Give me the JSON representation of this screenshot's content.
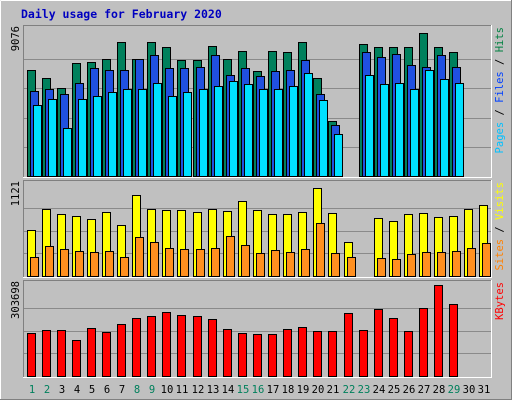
{
  "chart_data": {
    "type": "bar",
    "title": "Daily usage for February 2020",
    "days": [
      "1",
      "2",
      "3",
      "4",
      "5",
      "6",
      "7",
      "8",
      "9",
      "10",
      "11",
      "12",
      "13",
      "14",
      "15",
      "16",
      "17",
      "18",
      "19",
      "20",
      "21",
      "22",
      "23",
      "24",
      "25",
      "26",
      "27",
      "28",
      "29",
      "30",
      "31"
    ],
    "weekend_days": [
      1,
      2,
      8,
      9,
      15,
      16,
      22,
      23,
      29
    ],
    "panels": [
      {
        "id": "hits_files_pages",
        "ymax_label": "9076",
        "ymax": 9076,
        "labels": [
          {
            "text": "Pages",
            "color": "#00c0ff"
          },
          {
            "text": "Files",
            "color": "#0040ff"
          },
          {
            "text": "Hits",
            "color": "#008040"
          }
        ],
        "series": [
          {
            "name": "Hits",
            "color": "#00805c",
            "values": [
              6600,
              6100,
              5500,
              7000,
              7100,
              7300,
              8300,
              7300,
              8300,
              8000,
              7200,
              7200,
              8100,
              7300,
              7800,
              6500,
              7800,
              7700,
              8300,
              6100,
              3400,
              0,
              8200,
              8000,
              8000,
              8000,
              8900,
              8000,
              7700,
              0,
              0
            ]
          },
          {
            "name": "Files",
            "color": "#2050e0",
            "values": [
              5300,
              5400,
              5100,
              5800,
              6700,
              6600,
              6600,
              7300,
              7500,
              6700,
              6700,
              6800,
              7500,
              6300,
              6700,
              6200,
              6500,
              6600,
              7200,
              5100,
              3200,
              0,
              7700,
              7400,
              7600,
              6900,
              6800,
              7500,
              6800,
              0,
              0
            ]
          },
          {
            "name": "Pages",
            "color": "#00e0ff",
            "values": [
              4400,
              4800,
              3000,
              4800,
              5000,
              5200,
              5400,
              5400,
              5800,
              5000,
              5200,
              5400,
              5600,
              5900,
              5700,
              5400,
              5400,
              5600,
              6400,
              4700,
              2600,
              0,
              6300,
              5700,
              5800,
              5400,
              6600,
              6000,
              5800,
              0,
              0
            ]
          }
        ]
      },
      {
        "id": "visits_sites",
        "ymax_label": "1121",
        "ymax": 1121,
        "labels": [
          {
            "text": "Sites",
            "color": "#ff8000"
          },
          {
            "text": "Visits",
            "color": "#ffff00"
          }
        ],
        "series": [
          {
            "name": "Visits",
            "color": "#ffff00",
            "values": [
              570,
              830,
              760,
              740,
              700,
              790,
              630,
              1000,
              830,
              810,
              810,
              790,
              830,
              800,
              930,
              810,
              760,
              760,
              790,
              1080,
              770,
              420,
              0,
              710,
              680,
              760,
              780,
              730,
              740,
              830,
              880
            ]
          },
          {
            "name": "Sites",
            "color": "#ff9020",
            "values": [
              240,
              370,
              330,
              310,
              300,
              310,
              240,
              480,
              420,
              340,
              330,
              330,
              340,
              490,
              380,
              280,
              320,
              300,
              330,
              650,
              280,
              230,
              0,
              220,
              210,
              270,
              300,
              290,
              310,
              340,
              410
            ]
          }
        ]
      },
      {
        "id": "kbytes",
        "ymax_label": "303698",
        "ymax": 303698,
        "labels": [
          {
            "text": "KBytes",
            "color": "#ff0000"
          }
        ],
        "series": [
          {
            "name": "KBytes",
            "color": "#ff0000",
            "values": [
              145000,
              155000,
              152000,
              121000,
              160000,
              147000,
              173000,
              195000,
              199000,
              215000,
              204000,
              201000,
              191000,
              158000,
              145000,
              139000,
              139000,
              158000,
              165000,
              150000,
              151000,
              209000,
              153000,
              222000,
              193000,
              149000,
              228000,
              303698,
              239000,
              0,
              0
            ]
          }
        ]
      }
    ]
  }
}
